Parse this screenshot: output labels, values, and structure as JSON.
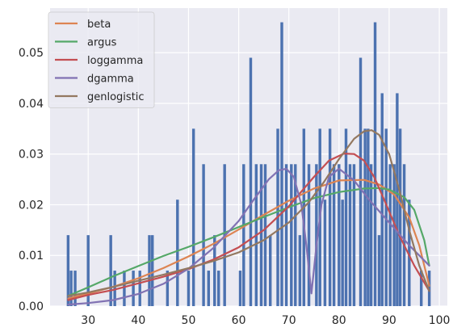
{
  "chart_data": {
    "type": "bar",
    "title": "",
    "xlabel": "",
    "ylabel": "",
    "xlim": [
      22.4,
      101.6
    ],
    "ylim": [
      0,
      0.0588
    ],
    "x_ticks": [
      30,
      40,
      50,
      60,
      70,
      80,
      90,
      100
    ],
    "y_ticks": [
      0.0,
      0.01,
      0.02,
      0.03,
      0.04,
      0.05
    ],
    "y_tick_labels": [
      "0.00",
      "0.01",
      "0.02",
      "0.03",
      "0.04",
      "0.05"
    ],
    "grid": true,
    "legend_position": "upper-left",
    "colors": {
      "background": "#eaeaf2",
      "grid": "#ffffff",
      "bars": "#4c72b0"
    },
    "histogram": {
      "bars": [
        {
          "x": 26.0,
          "y": 0.014
        },
        {
          "x": 26.6,
          "y": 0.007
        },
        {
          "x": 27.4,
          "y": 0.007
        },
        {
          "x": 30.0,
          "y": 0.014
        },
        {
          "x": 34.5,
          "y": 0.014
        },
        {
          "x": 35.3,
          "y": 0.007
        },
        {
          "x": 37.2,
          "y": 0.007
        },
        {
          "x": 39.0,
          "y": 0.007
        },
        {
          "x": 40.3,
          "y": 0.007
        },
        {
          "x": 42.2,
          "y": 0.014
        },
        {
          "x": 42.8,
          "y": 0.014
        },
        {
          "x": 45.8,
          "y": 0.007
        },
        {
          "x": 47.8,
          "y": 0.021
        },
        {
          "x": 50.0,
          "y": 0.007
        },
        {
          "x": 51.0,
          "y": 0.035
        },
        {
          "x": 53.0,
          "y": 0.028
        },
        {
          "x": 54.0,
          "y": 0.007
        },
        {
          "x": 55.2,
          "y": 0.014
        },
        {
          "x": 56.0,
          "y": 0.007
        },
        {
          "x": 57.2,
          "y": 0.028
        },
        {
          "x": 60.3,
          "y": 0.007
        },
        {
          "x": 61.0,
          "y": 0.028
        },
        {
          "x": 62.4,
          "y": 0.049
        },
        {
          "x": 63.5,
          "y": 0.028
        },
        {
          "x": 64.5,
          "y": 0.028
        },
        {
          "x": 65.3,
          "y": 0.028
        },
        {
          "x": 66.3,
          "y": 0.014
        },
        {
          "x": 67.8,
          "y": 0.035
        },
        {
          "x": 68.6,
          "y": 0.056
        },
        {
          "x": 69.5,
          "y": 0.028
        },
        {
          "x": 70.5,
          "y": 0.028
        },
        {
          "x": 71.3,
          "y": 0.028
        },
        {
          "x": 72.2,
          "y": 0.014
        },
        {
          "x": 73.0,
          "y": 0.035
        },
        {
          "x": 74.0,
          "y": 0.028
        },
        {
          "x": 75.5,
          "y": 0.028
        },
        {
          "x": 76.2,
          "y": 0.035
        },
        {
          "x": 77.2,
          "y": 0.021
        },
        {
          "x": 78.2,
          "y": 0.035
        },
        {
          "x": 79.0,
          "y": 0.028
        },
        {
          "x": 80.0,
          "y": 0.028
        },
        {
          "x": 80.7,
          "y": 0.021
        },
        {
          "x": 81.4,
          "y": 0.035
        },
        {
          "x": 82.2,
          "y": 0.028
        },
        {
          "x": 83.0,
          "y": 0.028
        },
        {
          "x": 84.3,
          "y": 0.049
        },
        {
          "x": 85.2,
          "y": 0.035
        },
        {
          "x": 85.8,
          "y": 0.035
        },
        {
          "x": 86.4,
          "y": 0.028
        },
        {
          "x": 87.2,
          "y": 0.056
        },
        {
          "x": 88.0,
          "y": 0.014
        },
        {
          "x": 88.6,
          "y": 0.042
        },
        {
          "x": 89.4,
          "y": 0.035
        },
        {
          "x": 90.2,
          "y": 0.028
        },
        {
          "x": 91.0,
          "y": 0.028
        },
        {
          "x": 91.6,
          "y": 0.042
        },
        {
          "x": 92.2,
          "y": 0.035
        },
        {
          "x": 93.0,
          "y": 0.028
        },
        {
          "x": 94.0,
          "y": 0.021
        },
        {
          "x": 96.4,
          "y": 0.007
        },
        {
          "x": 98.0,
          "y": 0.007
        }
      ]
    },
    "series": [
      {
        "name": "beta",
        "color": "#dd8452",
        "x": [
          26,
          30,
          35,
          40,
          45,
          50,
          55,
          60,
          65,
          70,
          75,
          80,
          85,
          88,
          91,
          94,
          96,
          98
        ],
        "y": [
          0.0015,
          0.0025,
          0.0038,
          0.0055,
          0.0075,
          0.0098,
          0.0123,
          0.0151,
          0.018,
          0.0208,
          0.0232,
          0.0248,
          0.0249,
          0.024,
          0.022,
          0.0175,
          0.012,
          0.004
        ]
      },
      {
        "name": "argus",
        "color": "#55a868",
        "x": [
          26,
          30,
          35,
          40,
          45,
          50,
          55,
          60,
          65,
          70,
          75,
          80,
          85,
          88,
          90,
          93,
          95,
          97,
          98
        ],
        "y": [
          0.002,
          0.0037,
          0.0059,
          0.0079,
          0.0099,
          0.0117,
          0.0136,
          0.0156,
          0.0176,
          0.0195,
          0.0213,
          0.0225,
          0.0232,
          0.0233,
          0.023,
          0.0215,
          0.019,
          0.013,
          0.008
        ]
      },
      {
        "name": "loggamma",
        "color": "#c44e52",
        "x": [
          26,
          30,
          35,
          40,
          45,
          50,
          55,
          60,
          65,
          70,
          75,
          78,
          81,
          83,
          85,
          87,
          89,
          92,
          95,
          98
        ],
        "y": [
          0.0012,
          0.0022,
          0.0032,
          0.0045,
          0.0058,
          0.0073,
          0.0092,
          0.0116,
          0.015,
          0.0197,
          0.0255,
          0.0287,
          0.0301,
          0.03,
          0.0287,
          0.0255,
          0.021,
          0.014,
          0.008,
          0.003
        ]
      },
      {
        "name": "dgamma",
        "color": "#8172b3",
        "x": [
          26,
          30,
          35,
          40,
          45,
          50,
          55,
          60,
          63,
          66,
          68,
          69.5,
          71,
          72.5,
          73.5,
          74.5,
          75.5,
          76.5,
          78,
          80,
          83,
          86,
          90,
          94,
          98
        ],
        "y": [
          0.0003,
          0.0006,
          0.0012,
          0.0024,
          0.0044,
          0.0074,
          0.0115,
          0.0168,
          0.021,
          0.025,
          0.0268,
          0.0271,
          0.0255,
          0.02,
          0.012,
          0.0025,
          0.012,
          0.02,
          0.0255,
          0.0271,
          0.0248,
          0.021,
          0.0165,
          0.012,
          0.008
        ]
      },
      {
        "name": "genlogistic",
        "color": "#937860",
        "x": [
          26,
          30,
          35,
          40,
          45,
          50,
          55,
          60,
          65,
          70,
          74,
          77,
          80,
          83,
          85,
          86.5,
          88,
          90,
          92,
          94,
          96,
          98
        ],
        "y": [
          0.002,
          0.0027,
          0.0038,
          0.005,
          0.0062,
          0.0075,
          0.0089,
          0.0106,
          0.013,
          0.0165,
          0.0205,
          0.0245,
          0.029,
          0.033,
          0.0345,
          0.0347,
          0.0338,
          0.03,
          0.023,
          0.015,
          0.008,
          0.003
        ]
      }
    ]
  }
}
